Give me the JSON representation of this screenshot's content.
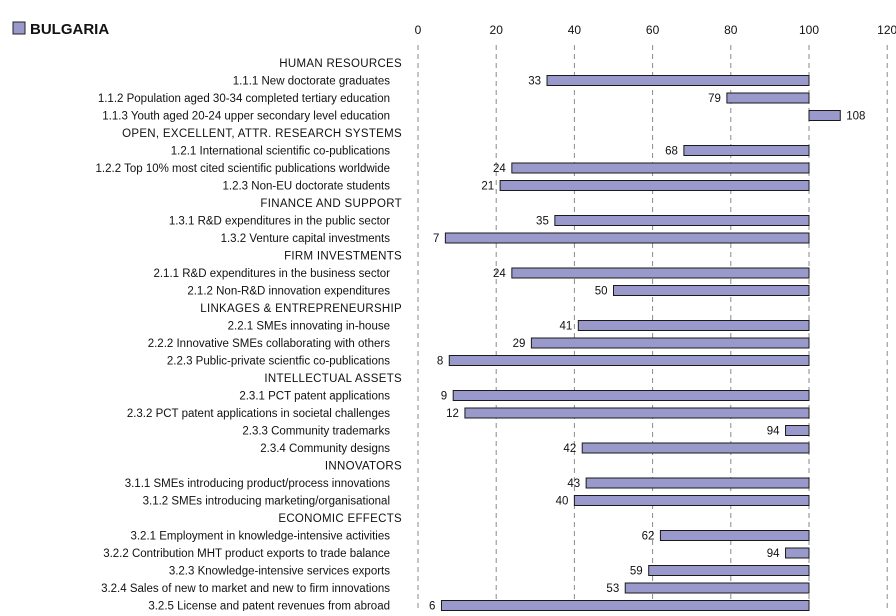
{
  "chart_data": {
    "type": "bar",
    "orientation": "horizontal",
    "baseline": 100,
    "title": "BULGARIA",
    "xlim": [
      0,
      120
    ],
    "xticks": [
      "0",
      "20",
      "40",
      "60",
      "80",
      "100",
      "120"
    ],
    "grid": "vertical dashed",
    "legend": "top-left",
    "bar_color": "#9999cc",
    "rows": [
      {
        "kind": "section",
        "label": "HUMAN RESOURCES"
      },
      {
        "kind": "bar",
        "label": "1.1.1 New doctorate graduates",
        "value": 33,
        "value_label": "33"
      },
      {
        "kind": "bar",
        "label": "1.1.2 Population aged 30-34 completed tertiary education",
        "value": 79,
        "value_label": "79"
      },
      {
        "kind": "bar",
        "label": "1.1.3 Youth aged 20-24 upper secondary level education",
        "value": 108,
        "value_label": "108"
      },
      {
        "kind": "section",
        "label": "OPEN, EXCELLENT, ATTR. RESEARCH SYSTEMS"
      },
      {
        "kind": "bar",
        "label": "1.2.1 International scientific co-publications",
        "value": 68,
        "value_label": "68"
      },
      {
        "kind": "bar",
        "label": "1.2.2 Top 10% most cited scientific publications worldwide",
        "value": 24,
        "value_label": "24"
      },
      {
        "kind": "bar",
        "label": "1.2.3 Non-EU doctorate students",
        "value": 21,
        "value_label": "21"
      },
      {
        "kind": "section",
        "label": "FINANCE AND SUPPORT"
      },
      {
        "kind": "bar",
        "label": "1.3.1 R&D expenditures in the public sector",
        "value": 35,
        "value_label": "35"
      },
      {
        "kind": "bar",
        "label": "1.3.2 Venture capital investments",
        "value": 7,
        "value_label": "7"
      },
      {
        "kind": "section",
        "label": "FIRM INVESTMENTS"
      },
      {
        "kind": "bar",
        "label": "2.1.1 R&D expenditures in the business sector",
        "value": 24,
        "value_label": "24"
      },
      {
        "kind": "bar",
        "label": "2.1.2 Non-R&D innovation expenditures",
        "value": 50,
        "value_label": "50"
      },
      {
        "kind": "section",
        "label": "LINKAGES & ENTREPRENEURSHIP"
      },
      {
        "kind": "bar",
        "label": "2.2.1 SMEs innovating in-house",
        "value": 41,
        "value_label": "41"
      },
      {
        "kind": "bar",
        "label": "2.2.2 Innovative SMEs collaborating with others",
        "value": 29,
        "value_label": "29"
      },
      {
        "kind": "bar",
        "label": "2.2.3 Public-private scientfic co-publications",
        "value": 8,
        "value_label": "8"
      },
      {
        "kind": "section",
        "label": "INTELLECTUAL ASSETS"
      },
      {
        "kind": "bar",
        "label": "2.3.1 PCT patent applications",
        "value": 9,
        "value_label": "9"
      },
      {
        "kind": "bar",
        "label": "2.3.2 PCT patent applications in societal challenges",
        "value": 12,
        "value_label": "12"
      },
      {
        "kind": "bar",
        "label": "2.3.3 Community trademarks",
        "value": 94,
        "value_label": "94"
      },
      {
        "kind": "bar",
        "label": "2.3.4 Community designs",
        "value": 42,
        "value_label": "42"
      },
      {
        "kind": "section",
        "label": "INNOVATORS"
      },
      {
        "kind": "bar",
        "label": "3.1.1 SMEs introducing product/process innovations",
        "value": 43,
        "value_label": "43"
      },
      {
        "kind": "bar",
        "label": "3.1.2 SMEs introducing marketing/organisational",
        "value": 40,
        "value_label": "40"
      },
      {
        "kind": "section",
        "label": "ECONOMIC EFFECTS"
      },
      {
        "kind": "bar",
        "label": "3.2.1 Employment in knowledge-intensive activities",
        "value": 62,
        "value_label": "62"
      },
      {
        "kind": "bar",
        "label": "3.2.2 Contribution MHT product exports to trade balance",
        "value": 94,
        "value_label": "94"
      },
      {
        "kind": "bar",
        "label": "3.2.3 Knowledge-intensive services exports",
        "value": 59,
        "value_label": "59"
      },
      {
        "kind": "bar",
        "label": "3.2.4 Sales of new to market and new to firm innovations",
        "value": 53,
        "value_label": "53"
      },
      {
        "kind": "bar",
        "label": "3.2.5 License and patent revenues from abroad",
        "value": 6,
        "value_label": "6"
      }
    ]
  }
}
